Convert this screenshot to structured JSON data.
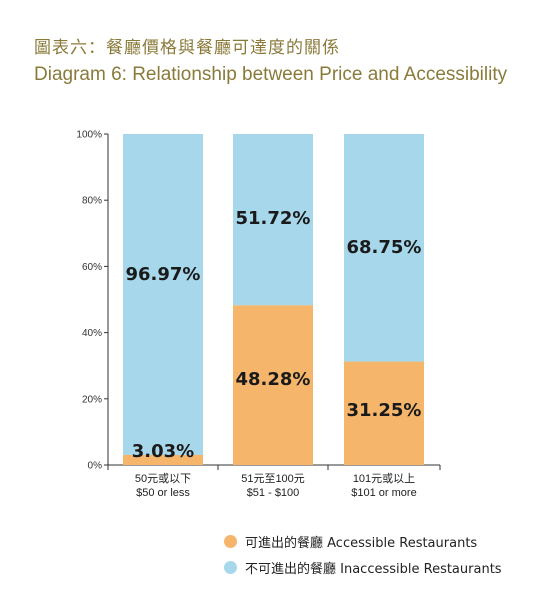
{
  "title_zh": "圖表六：餐廳價格與餐廳可達度的關係",
  "title_en": "Diagram 6: Relationship between Price and Accessibility",
  "colors": {
    "accessible": "#f5b66c",
    "inaccessible": "#a7d7ea",
    "title": "#8a7a3a"
  },
  "legend": [
    {
      "key": "accessible",
      "label": "可進出的餐廳 Accessible Restaurants"
    },
    {
      "key": "inaccessible",
      "label": "不可進出的餐廳 Inaccessible Restaurants"
    }
  ],
  "chart_data": {
    "type": "bar",
    "stacked": true,
    "categories": [
      [
        "50元或以下",
        "$50 or less"
      ],
      [
        "51元至100元",
        "$51 - $100"
      ],
      [
        "101元或以上",
        "$101 or more"
      ]
    ],
    "series": [
      {
        "name": "可進出的餐廳 Accessible Restaurants",
        "values": [
          3.03,
          48.28,
          31.25
        ],
        "labels": [
          "3.03%",
          "48.28%",
          "31.25%"
        ]
      },
      {
        "name": "不可進出的餐廳 Inaccessible Restaurants",
        "values": [
          96.97,
          51.72,
          68.75
        ],
        "labels": [
          "96.97%",
          "51.72%",
          "68.75%"
        ]
      }
    ],
    "y_ticks": [
      "0%",
      "20%",
      "40%",
      "60%",
      "80%",
      "100%"
    ],
    "ylim": [
      0,
      100
    ],
    "grid": false,
    "legend_position": "bottom-right"
  }
}
